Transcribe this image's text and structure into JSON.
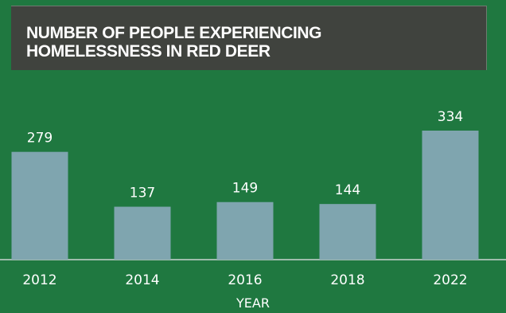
{
  "title_line1": "NUMBER OF PEOPLE EXPERIENCING",
  "title_line2": "HOMELESSNESS IN RED DEER",
  "colors": {
    "background": "#1f7840",
    "title_box": "#40433e",
    "bar": "#7fa5af",
    "axis": "#c9d3cf",
    "text": "#ffffff"
  },
  "chart_data": {
    "type": "bar",
    "title": "NUMBER OF PEOPLE EXPERIENCING HOMELESSNESS IN RED DEER",
    "categories": [
      "2012",
      "2014",
      "2016",
      "2018",
      "2022"
    ],
    "values": [
      279,
      137,
      149,
      144,
      334
    ],
    "data_labels": [
      "279",
      "137",
      "149",
      "144",
      "334"
    ],
    "xlabel": "YEAR",
    "ylabel": "",
    "ylim": [
      0,
      334
    ],
    "grid": false,
    "legend": "none"
  }
}
